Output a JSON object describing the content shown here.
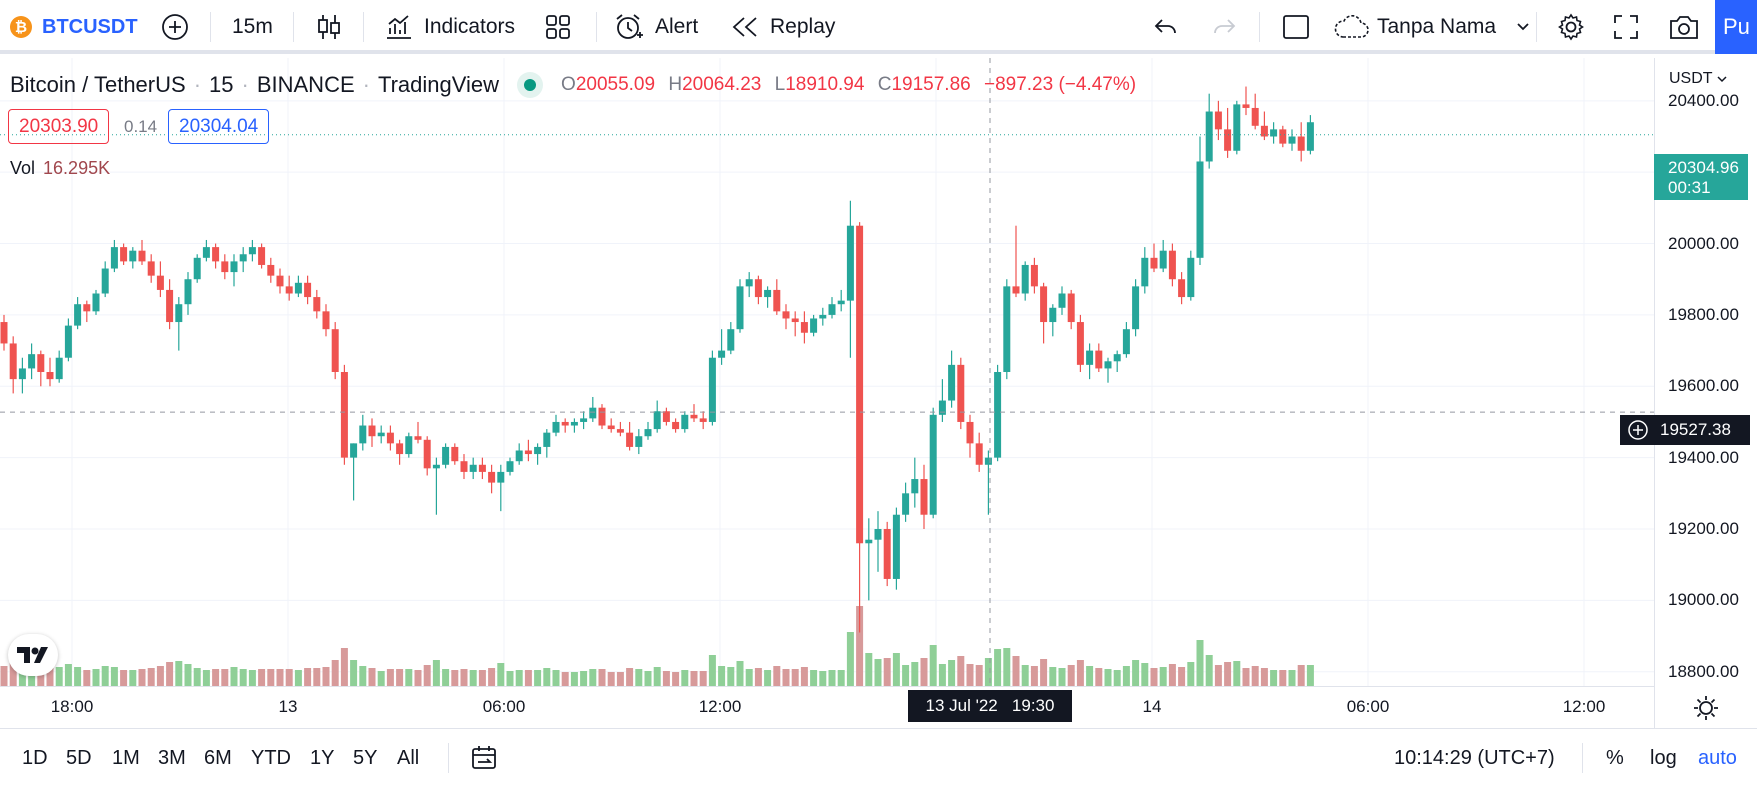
{
  "toolbar": {
    "symbol": "BTCUSDT",
    "add_compare_icon": "plus-circle-icon",
    "interval": "15m",
    "chart_type_icon": "candles-icon",
    "indicators_label": "Indicators",
    "layout_icon": "grid-icon",
    "alert_label": "Alert",
    "replay_label": "Replay",
    "layout_name": "Tanpa Nama",
    "publish_label": "Pu"
  },
  "legend": {
    "title_parts": [
      "Bitcoin / TetherUS",
      "15",
      "BINANCE",
      "TradingView"
    ],
    "open_key": "O",
    "open": "20055.09",
    "high_key": "H",
    "high": "20064.23",
    "low_key": "L",
    "low": "18910.94",
    "close_key": "C",
    "close": "19157.86",
    "change": "−897.23 (−4.47%)",
    "bid": "20303.90",
    "spread": "0.14",
    "ask": "20304.04",
    "vol_label": "Vol",
    "vol_value": "16.295K"
  },
  "price_axis": {
    "currency": "USDT",
    "current_price": "20304.96",
    "countdown": "00:31",
    "crosshair_price": "19527.38",
    "tick_labels": [
      "20400.00",
      "20200.00",
      "20000.00",
      "19800.00",
      "19600.00",
      "19400.00",
      "19200.00",
      "19000.00",
      "18800.00"
    ]
  },
  "time_axis": {
    "tick_labels": [
      "18:00",
      "13",
      "06:00",
      "12:00",
      "14",
      "06:00",
      "12:00"
    ],
    "crosshair_time": "13 Jul '22   19:30"
  },
  "bottom": {
    "ranges": [
      "1D",
      "5D",
      "1M",
      "3M",
      "6M",
      "YTD",
      "1Y",
      "5Y",
      "All"
    ],
    "clock": "10:14:29 (UTC+7)",
    "percent": "%",
    "log": "log",
    "auto": "auto"
  },
  "colors": {
    "up": "#26a69a",
    "down": "#ef5350",
    "vol_up": "#8fcf97",
    "vol_down": "#d79a9a",
    "accent": "#2962ff"
  },
  "chart_data": {
    "type": "candlestick",
    "ylim": [
      18760,
      20520
    ],
    "price_ticks": [
      20400,
      20200,
      20000,
      19800,
      19600,
      19400,
      19200,
      19000,
      18800
    ],
    "current_price": 20304.96,
    "crosshair_price": 19527.38,
    "candles_hint": "15m OHLC approximated from screenshot",
    "candles": [
      [
        19780,
        19800,
        19700,
        19720
      ],
      [
        19720,
        19740,
        19580,
        19620
      ],
      [
        19620,
        19680,
        19580,
        19650
      ],
      [
        19650,
        19720,
        19620,
        19690
      ],
      [
        19690,
        19700,
        19600,
        19640
      ],
      [
        19640,
        19680,
        19600,
        19620
      ],
      [
        19620,
        19700,
        19610,
        19680
      ],
      [
        19680,
        19790,
        19670,
        19770
      ],
      [
        19770,
        19850,
        19760,
        19830
      ],
      [
        19830,
        19840,
        19780,
        19810
      ],
      [
        19810,
        19870,
        19800,
        19860
      ],
      [
        19860,
        19950,
        19850,
        19930
      ],
      [
        19930,
        20010,
        19920,
        19990
      ],
      [
        19990,
        20000,
        19940,
        19950
      ],
      [
        19950,
        19990,
        19930,
        19980
      ],
      [
        19980,
        20010,
        19940,
        19950
      ],
      [
        19950,
        19970,
        19890,
        19910
      ],
      [
        19910,
        19950,
        19850,
        19870
      ],
      [
        19870,
        19900,
        19760,
        19780
      ],
      [
        19780,
        19850,
        19700,
        19830
      ],
      [
        19830,
        19920,
        19800,
        19900
      ],
      [
        19900,
        19970,
        19890,
        19960
      ],
      [
        19960,
        20010,
        19950,
        19990
      ],
      [
        19990,
        20000,
        19930,
        19950
      ],
      [
        19950,
        19970,
        19900,
        19920
      ],
      [
        19920,
        19970,
        19880,
        19950
      ],
      [
        19950,
        19990,
        19920,
        19970
      ],
      [
        19970,
        20010,
        19950,
        19990
      ],
      [
        19990,
        20000,
        19930,
        19940
      ],
      [
        19940,
        19960,
        19890,
        19910
      ],
      [
        19910,
        19930,
        19860,
        19880
      ],
      [
        19880,
        19910,
        19840,
        19860
      ],
      [
        19860,
        19910,
        19850,
        19890
      ],
      [
        19890,
        19910,
        19830,
        19850
      ],
      [
        19850,
        19870,
        19790,
        19810
      ],
      [
        19810,
        19830,
        19740,
        19760
      ],
      [
        19760,
        19780,
        19620,
        19640
      ],
      [
        19640,
        19660,
        19380,
        19400
      ],
      [
        19400,
        19440,
        19280,
        19440
      ],
      [
        19440,
        19520,
        19420,
        19490
      ],
      [
        19490,
        19510,
        19430,
        19460
      ],
      [
        19460,
        19490,
        19440,
        19470
      ],
      [
        19470,
        19490,
        19420,
        19440
      ],
      [
        19440,
        19450,
        19380,
        19410
      ],
      [
        19410,
        19470,
        19400,
        19460
      ],
      [
        19460,
        19500,
        19440,
        19450
      ],
      [
        19450,
        19460,
        19350,
        19370
      ],
      [
        19370,
        19400,
        19240,
        19380
      ],
      [
        19380,
        19440,
        19370,
        19430
      ],
      [
        19430,
        19440,
        19380,
        19390
      ],
      [
        19390,
        19410,
        19340,
        19360
      ],
      [
        19360,
        19400,
        19340,
        19380
      ],
      [
        19380,
        19400,
        19340,
        19360
      ],
      [
        19360,
        19380,
        19300,
        19330
      ],
      [
        19330,
        19380,
        19250,
        19360
      ],
      [
        19360,
        19400,
        19350,
        19390
      ],
      [
        19390,
        19440,
        19380,
        19420
      ],
      [
        19420,
        19450,
        19390,
        19410
      ],
      [
        19410,
        19440,
        19380,
        19430
      ],
      [
        19430,
        19480,
        19400,
        19470
      ],
      [
        19470,
        19520,
        19460,
        19500
      ],
      [
        19500,
        19510,
        19470,
        19490
      ],
      [
        19490,
        19510,
        19470,
        19500
      ],
      [
        19500,
        19530,
        19480,
        19510
      ],
      [
        19510,
        19570,
        19500,
        19540
      ],
      [
        19540,
        19550,
        19480,
        19490
      ],
      [
        19490,
        19510,
        19470,
        19480
      ],
      [
        19480,
        19500,
        19460,
        19470
      ],
      [
        19470,
        19500,
        19420,
        19430
      ],
      [
        19430,
        19480,
        19410,
        19460
      ],
      [
        19460,
        19500,
        19450,
        19480
      ],
      [
        19480,
        19560,
        19470,
        19530
      ],
      [
        19530,
        19540,
        19490,
        19500
      ],
      [
        19500,
        19510,
        19470,
        19480
      ],
      [
        19480,
        19530,
        19470,
        19520
      ],
      [
        19520,
        19550,
        19500,
        19510
      ],
      [
        19510,
        19530,
        19480,
        19500
      ],
      [
        19500,
        19700,
        19490,
        19680
      ],
      [
        19680,
        19760,
        19660,
        19700
      ],
      [
        19700,
        19780,
        19690,
        19760
      ],
      [
        19760,
        19900,
        19750,
        19880
      ],
      [
        19880,
        19920,
        19850,
        19900
      ],
      [
        19900,
        19910,
        19830,
        19850
      ],
      [
        19850,
        19880,
        19820,
        19870
      ],
      [
        19870,
        19900,
        19800,
        19810
      ],
      [
        19810,
        19830,
        19760,
        19790
      ],
      [
        19790,
        19810,
        19740,
        19780
      ],
      [
        19780,
        19810,
        19720,
        19750
      ],
      [
        19750,
        19800,
        19740,
        19790
      ],
      [
        19790,
        19820,
        19770,
        19800
      ],
      [
        19800,
        19850,
        19790,
        19830
      ],
      [
        19830,
        19870,
        19810,
        19840
      ],
      [
        19840,
        20120,
        19680,
        20050
      ],
      [
        20050,
        20060,
        18910,
        19160
      ],
      [
        19160,
        19230,
        19000,
        19170
      ],
      [
        19170,
        19250,
        19080,
        19200
      ],
      [
        19200,
        19220,
        19040,
        19060
      ],
      [
        19060,
        19260,
        19030,
        19240
      ],
      [
        19240,
        19330,
        19220,
        19300
      ],
      [
        19300,
        19400,
        19260,
        19340
      ],
      [
        19340,
        19380,
        19200,
        19240
      ],
      [
        19240,
        19540,
        19230,
        19520
      ],
      [
        19520,
        19620,
        19500,
        19560
      ],
      [
        19560,
        19700,
        19540,
        19660
      ],
      [
        19660,
        19680,
        19480,
        19500
      ],
      [
        19500,
        19520,
        19400,
        19440
      ],
      [
        19440,
        19470,
        19360,
        19380
      ],
      [
        19380,
        19420,
        19240,
        19400
      ],
      [
        19400,
        19660,
        19390,
        19640
      ],
      [
        19640,
        19900,
        19620,
        19880
      ],
      [
        19880,
        20050,
        19850,
        19860
      ],
      [
        19860,
        19950,
        19840,
        19940
      ],
      [
        19940,
        19960,
        19860,
        19880
      ],
      [
        19880,
        19890,
        19720,
        19780
      ],
      [
        19780,
        19830,
        19740,
        19820
      ],
      [
        19820,
        19880,
        19800,
        19860
      ],
      [
        19860,
        19870,
        19760,
        19780
      ],
      [
        19780,
        19800,
        19640,
        19660
      ],
      [
        19660,
        19720,
        19620,
        19700
      ],
      [
        19700,
        19720,
        19640,
        19650
      ],
      [
        19650,
        19680,
        19610,
        19670
      ],
      [
        19670,
        19700,
        19640,
        19690
      ],
      [
        19690,
        19780,
        19680,
        19760
      ],
      [
        19760,
        19900,
        19740,
        19880
      ],
      [
        19880,
        19990,
        19860,
        19960
      ],
      [
        19960,
        20000,
        19920,
        19930
      ],
      [
        19930,
        20010,
        19920,
        19980
      ],
      [
        19980,
        20000,
        19880,
        19900
      ],
      [
        19900,
        19920,
        19830,
        19850
      ],
      [
        19850,
        19980,
        19840,
        19960
      ],
      [
        19960,
        20300,
        19940,
        20230
      ],
      [
        20230,
        20420,
        20210,
        20370
      ],
      [
        20370,
        20400,
        20290,
        20320
      ],
      [
        20320,
        20380,
        20240,
        20260
      ],
      [
        20260,
        20400,
        20250,
        20390
      ],
      [
        20390,
        20440,
        20360,
        20380
      ],
      [
        20380,
        20420,
        20320,
        20330
      ],
      [
        20330,
        20370,
        20290,
        20300
      ],
      [
        20300,
        20340,
        20280,
        20320
      ],
      [
        20320,
        20330,
        20270,
        20280
      ],
      [
        20280,
        20320,
        20260,
        20300
      ],
      [
        20300,
        20340,
        20230,
        20260
      ],
      [
        20260,
        20360,
        20250,
        20340
      ]
    ],
    "volumes_hint": "relative volume heights"
  }
}
